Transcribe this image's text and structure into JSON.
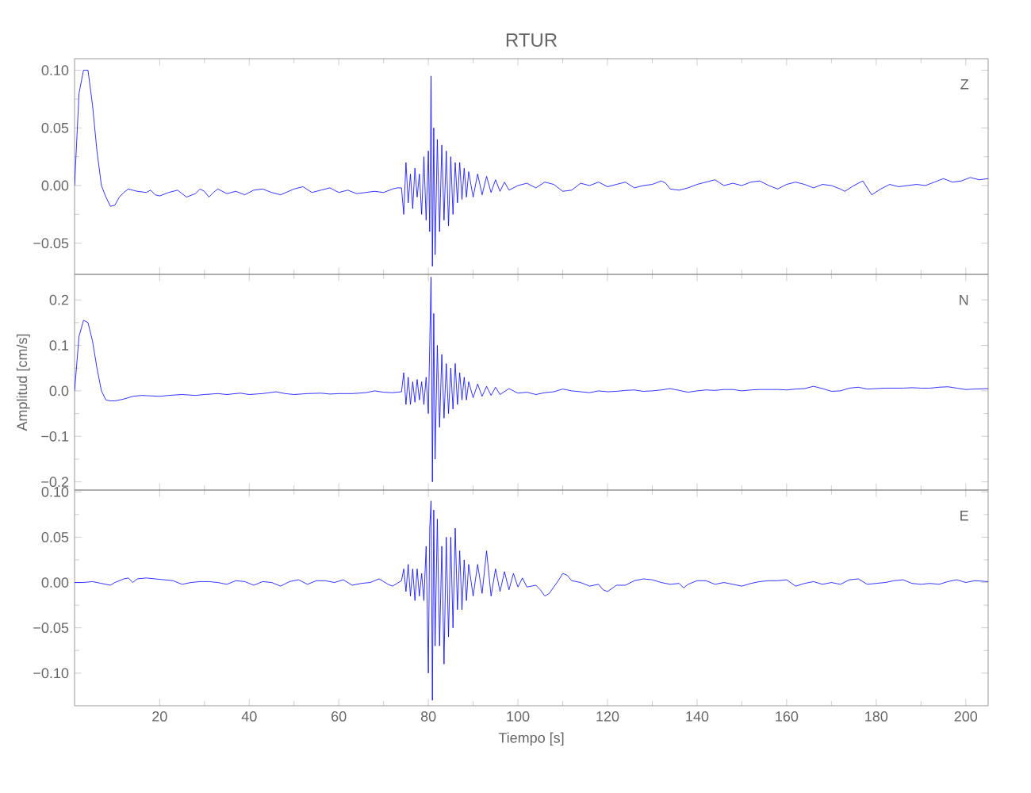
{
  "chart_data": [
    {
      "type": "line",
      "title": "RTUR",
      "xlim": [
        1,
        205
      ],
      "ylim": [
        -0.077,
        0.11
      ],
      "tick_labels": "y",
      "xticks": [
        20,
        40,
        60,
        80,
        100,
        120,
        140,
        160,
        180,
        200
      ],
      "yticks": [
        {
          "value": -0.05,
          "label": "−0.05"
        },
        {
          "value": 0,
          "label": "0.00"
        },
        {
          "value": 0.05,
          "label": "0.05"
        },
        {
          "value": 0.1,
          "label": "0.10"
        }
      ],
      "series": [
        {
          "name": "Z",
          "color": "#0000ff",
          "x": [
            1,
            2,
            3,
            4,
            5,
            6,
            7,
            8,
            9,
            10,
            11,
            12,
            13,
            14,
            15,
            17,
            18,
            19,
            20,
            22,
            24,
            26,
            28,
            29,
            30,
            31,
            32,
            33,
            35,
            37,
            39,
            41,
            43,
            45,
            47,
            50,
            52,
            54,
            56,
            58,
            60,
            62,
            64,
            66,
            68,
            70,
            72,
            73,
            74,
            74.5,
            75,
            75.5,
            76,
            76.5,
            77,
            77.5,
            78,
            78.5,
            79,
            79.5,
            80,
            80.3,
            80.6,
            80.9,
            81.2,
            81.5,
            82,
            82.5,
            83,
            83.5,
            84,
            84.5,
            85,
            85.5,
            86,
            86.5,
            87,
            87.5,
            88,
            88.5,
            89,
            90,
            91,
            92,
            93,
            94,
            95,
            96,
            97,
            98,
            100,
            102,
            104,
            106,
            108,
            110,
            112,
            114,
            116,
            118,
            120,
            122,
            124,
            126,
            128,
            130,
            132,
            133,
            134,
            136,
            138,
            140,
            142,
            144,
            146,
            148,
            150,
            152,
            154,
            156,
            158,
            160,
            162,
            164,
            166,
            168,
            170,
            172,
            173,
            175,
            177,
            179,
            181,
            183,
            185,
            187,
            189,
            191,
            193,
            195,
            197,
            199,
            201,
            203,
            205
          ],
          "values": [
            0.0,
            0.08,
            0.1,
            0.1,
            0.07,
            0.03,
            0.0,
            -0.01,
            -0.018,
            -0.017,
            -0.01,
            -0.006,
            -0.003,
            -0.004,
            -0.005,
            -0.006,
            -0.004,
            -0.008,
            -0.009,
            -0.006,
            -0.004,
            -0.01,
            -0.007,
            -0.003,
            -0.005,
            -0.01,
            -0.006,
            -0.003,
            -0.007,
            -0.005,
            -0.008,
            -0.004,
            -0.003,
            -0.006,
            -0.008,
            -0.003,
            -0.001,
            -0.006,
            -0.004,
            -0.002,
            -0.006,
            -0.004,
            -0.007,
            -0.006,
            -0.005,
            -0.006,
            -0.003,
            -0.002,
            -0.002,
            -0.025,
            0.02,
            -0.015,
            0.01,
            -0.02,
            0.015,
            -0.01,
            0.01,
            -0.025,
            0.025,
            -0.03,
            0.03,
            -0.04,
            0.095,
            -0.07,
            0.05,
            -0.06,
            0.04,
            -0.04,
            0.035,
            -0.03,
            0.03,
            -0.035,
            0.025,
            -0.025,
            0.02,
            -0.015,
            0.02,
            -0.012,
            0.015,
            -0.01,
            0.012,
            -0.01,
            0.01,
            -0.008,
            0.008,
            -0.006,
            0.005,
            -0.005,
            0.003,
            -0.004,
            0.0,
            0.002,
            -0.002,
            0.003,
            0.001,
            -0.005,
            -0.004,
            0.002,
            0.0,
            0.003,
            -0.001,
            0.001,
            0.003,
            -0.002,
            0.0,
            0.001,
            0.004,
            0.002,
            -0.003,
            -0.004,
            -0.002,
            0.001,
            0.003,
            0.005,
            0.0,
            0.002,
            0.0,
            0.003,
            0.004,
            0.0,
            -0.003,
            0.001,
            0.003,
            0.001,
            -0.002,
            0.001,
            0.0,
            -0.003,
            -0.005,
            0.0,
            0.004,
            -0.008,
            -0.003,
            0.001,
            -0.001,
            0.0,
            0.001,
            0.0,
            0.003,
            0.006,
            0.003,
            0.004,
            0.007,
            0.005,
            0.006
          ]
        }
      ]
    },
    {
      "type": "line",
      "ylabel": "Amplitud  [cm/s]",
      "xlim": [
        1,
        205
      ],
      "ylim": [
        -0.218,
        0.256
      ],
      "tick_labels": "y",
      "xticks": [
        20,
        40,
        60,
        80,
        100,
        120,
        140,
        160,
        180,
        200
      ],
      "yticks": [
        {
          "value": -0.2,
          "label": "−0.2"
        },
        {
          "value": -0.1,
          "label": "−0.1"
        },
        {
          "value": 0,
          "label": "0.0"
        },
        {
          "value": 0.1,
          "label": "0.1"
        },
        {
          "value": 0.2,
          "label": "0.2"
        }
      ],
      "series": [
        {
          "name": "N",
          "color": "#0000ff",
          "x": [
            1,
            2,
            3,
            4,
            5,
            6,
            7,
            8,
            9,
            10,
            12,
            14,
            16,
            18,
            20,
            22,
            25,
            28,
            30,
            33,
            35,
            38,
            40,
            43,
            46,
            48,
            50,
            53,
            56,
            58,
            60,
            63,
            66,
            68,
            70,
            72,
            74,
            74.5,
            75,
            75.5,
            76,
            76.5,
            77,
            77.5,
            78,
            78.5,
            79,
            79.5,
            80,
            80.3,
            80.6,
            80.9,
            81.2,
            81.5,
            82,
            82.5,
            83,
            83.5,
            84,
            84.5,
            85,
            85.5,
            86,
            86.5,
            87,
            87.5,
            88,
            88.5,
            89,
            90,
            91,
            92,
            93,
            94,
            95,
            96,
            98,
            100,
            102,
            104,
            106,
            108,
            110,
            112,
            114,
            116,
            118,
            120,
            122,
            124,
            126,
            128,
            130,
            132,
            134,
            136,
            138,
            140,
            142,
            144,
            146,
            148,
            150,
            152,
            154,
            156,
            158,
            160,
            162,
            164,
            166,
            168,
            170,
            172,
            174,
            176,
            178,
            180,
            182,
            184,
            186,
            188,
            190,
            192,
            194,
            196,
            198,
            200,
            202,
            205
          ],
          "values": [
            0.0,
            0.12,
            0.155,
            0.15,
            0.11,
            0.05,
            0.0,
            -0.02,
            -0.022,
            -0.022,
            -0.018,
            -0.012,
            -0.01,
            -0.011,
            -0.012,
            -0.01,
            -0.008,
            -0.01,
            -0.008,
            -0.006,
            -0.008,
            -0.005,
            -0.008,
            -0.006,
            -0.002,
            -0.006,
            -0.008,
            -0.006,
            -0.005,
            -0.007,
            -0.006,
            -0.006,
            -0.004,
            0.0,
            -0.003,
            -0.004,
            -0.002,
            0.04,
            -0.03,
            0.03,
            -0.03,
            0.02,
            -0.025,
            0.025,
            -0.02,
            0.02,
            -0.03,
            0.03,
            -0.05,
            0.1,
            0.25,
            -0.2,
            0.17,
            -0.15,
            0.1,
            -0.08,
            0.08,
            -0.06,
            0.06,
            -0.05,
            0.05,
            -0.04,
            0.06,
            -0.03,
            0.04,
            -0.02,
            0.03,
            -0.02,
            0.02,
            -0.015,
            0.015,
            -0.012,
            0.01,
            -0.01,
            0.008,
            -0.008,
            0.005,
            -0.005,
            -0.003,
            -0.008,
            -0.004,
            -0.002,
            0.004,
            0.0,
            -0.002,
            -0.004,
            0.0,
            -0.002,
            -0.001,
            0.001,
            0.002,
            -0.001,
            0.0,
            0.002,
            0.005,
            0.001,
            -0.003,
            0.0,
            0.002,
            0.001,
            0.003,
            0.003,
            0.0,
            0.002,
            0.003,
            0.003,
            0.003,
            0.002,
            0.004,
            0.005,
            0.01,
            0.005,
            -0.001,
            0.0,
            0.006,
            0.008,
            0.004,
            0.005,
            0.006,
            0.006,
            0.006,
            0.007,
            0.006,
            0.006,
            0.008,
            0.009,
            0.006,
            0.003,
            0.004,
            0.005
          ]
        }
      ]
    },
    {
      "type": "line",
      "xlabel": "Tiempo  [s]",
      "xlim": [
        1,
        205
      ],
      "ylim": [
        -0.136,
        0.102
      ],
      "xticks": [
        20,
        40,
        60,
        80,
        100,
        120,
        140,
        160,
        180,
        200
      ],
      "yticks": [
        {
          "value": -0.1,
          "label": "−0.10"
        },
        {
          "value": -0.05,
          "label": "−0.05"
        },
        {
          "value": 0,
          "label": "0.00"
        },
        {
          "value": 0.05,
          "label": "0.05"
        },
        {
          "value": 0.1,
          "label": "0.10"
        }
      ],
      "series": [
        {
          "name": "E",
          "color": "#0000ff",
          "x": [
            1,
            3,
            5,
            7,
            9,
            10,
            12,
            13,
            14,
            15,
            17,
            19,
            21,
            23,
            25,
            27,
            29,
            31,
            33,
            35,
            37,
            39,
            41,
            43,
            45,
            47,
            49,
            51,
            53,
            55,
            57,
            59,
            61,
            63,
            65,
            67,
            69,
            71,
            72,
            73,
            74,
            74.5,
            75,
            75.5,
            76,
            76.5,
            77,
            77.5,
            78,
            78.5,
            79,
            79.5,
            80,
            80.3,
            80.6,
            80.9,
            81.2,
            81.5,
            82,
            82.5,
            83,
            83.5,
            84,
            84.5,
            85,
            85.5,
            86,
            86.5,
            87,
            87.5,
            88,
            88.5,
            89,
            90,
            91,
            92,
            93,
            94,
            95,
            96,
            97,
            98,
            99,
            100,
            101,
            102,
            104,
            105,
            106,
            107,
            108,
            109,
            110,
            111,
            112,
            114,
            116,
            118,
            119,
            120,
            122,
            124,
            126,
            128,
            130,
            132,
            134,
            136,
            137,
            138,
            140,
            142,
            144,
            146,
            148,
            150,
            152,
            154,
            156,
            158,
            160,
            162,
            164,
            166,
            168,
            170,
            172,
            174,
            176,
            178,
            180,
            182,
            184,
            186,
            188,
            190,
            192,
            194,
            196,
            198,
            200,
            202,
            205
          ],
          "values": [
            0.0,
            0.0,
            0.001,
            -0.001,
            -0.003,
            0.0,
            0.004,
            0.005,
            0.0,
            0.004,
            0.005,
            0.004,
            0.003,
            0.002,
            -0.002,
            0.0,
            0.001,
            0.001,
            0.0,
            -0.002,
            0.002,
            0.001,
            -0.003,
            0.001,
            0.0,
            -0.004,
            0.001,
            0.003,
            -0.002,
            0.002,
            0.002,
            0.0,
            0.003,
            -0.003,
            -0.001,
            0.0,
            0.004,
            -0.002,
            -0.004,
            -0.001,
            0.002,
            0.015,
            -0.01,
            0.02,
            -0.015,
            0.015,
            -0.02,
            0.015,
            -0.015,
            0.01,
            -0.02,
            0.04,
            -0.1,
            0.06,
            0.09,
            -0.13,
            0.08,
            -0.07,
            0.07,
            -0.07,
            0.04,
            -0.09,
            0.05,
            -0.06,
            0.05,
            -0.05,
            0.06,
            -0.03,
            0.035,
            -0.03,
            0.025,
            -0.02,
            0.02,
            -0.015,
            0.02,
            -0.012,
            0.035,
            -0.015,
            0.015,
            -0.01,
            0.012,
            -0.008,
            0.01,
            -0.005,
            0.005,
            -0.005,
            -0.003,
            -0.008,
            -0.015,
            -0.012,
            -0.005,
            0.002,
            0.01,
            0.008,
            0.002,
            0.0,
            -0.004,
            -0.002,
            -0.008,
            -0.01,
            -0.003,
            -0.003,
            0.002,
            0.004,
            0.003,
            0.0,
            -0.002,
            -0.001,
            -0.006,
            -0.002,
            0.002,
            0.002,
            -0.002,
            0.0,
            -0.002,
            -0.004,
            -0.001,
            0.001,
            0.002,
            0.002,
            0.003,
            -0.004,
            -0.001,
            0.001,
            -0.002,
            0.0,
            -0.002,
            0.003,
            0.004,
            -0.002,
            -0.001,
            0.0,
            0.002,
            0.003,
            -0.001,
            -0.002,
            -0.001,
            -0.002,
            0.001,
            0.003,
            0.0,
            0.002,
            0.001
          ]
        }
      ]
    }
  ]
}
